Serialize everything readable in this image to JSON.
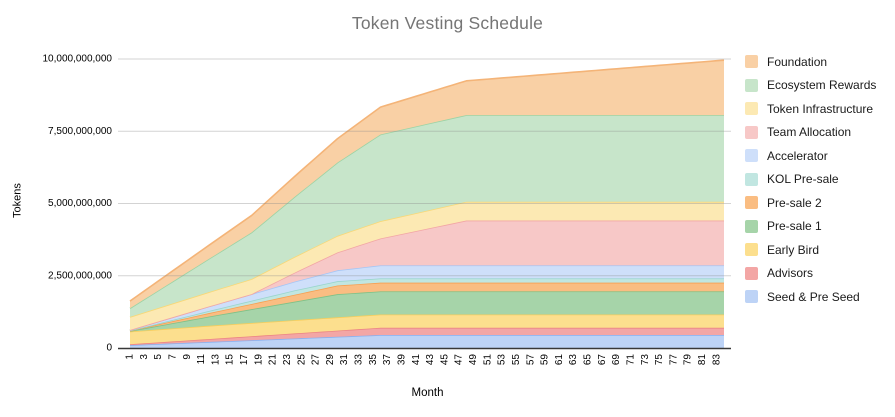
{
  "chart_data": {
    "type": "area",
    "stacked": true,
    "title": "Token Vesting Schedule",
    "xlabel": "Month",
    "ylabel": "Tokens",
    "x_range": [
      1,
      84
    ],
    "x_tick_labels": [
      "1",
      "3",
      "5",
      "7",
      "9",
      "11",
      "13",
      "15",
      "17",
      "19",
      "21",
      "23",
      "25",
      "27",
      "29",
      "31",
      "33",
      "35",
      "37",
      "39",
      "41",
      "43",
      "45",
      "47",
      "49",
      "51",
      "53",
      "55",
      "57",
      "59",
      "61",
      "63",
      "65",
      "67",
      "69",
      "71",
      "73",
      "75",
      "77",
      "79",
      "81",
      "83"
    ],
    "y_ticks": [
      0,
      2500000000,
      5000000000,
      7500000000,
      10000000000
    ],
    "y_tick_labels": [
      "0",
      "2,500,000,000",
      "5,000,000,000",
      "7,500,000,000",
      "10,000,000,000"
    ],
    "ylim": [
      0,
      10000000000
    ],
    "total_supply": 10000000000,
    "legend_position": "right",
    "grid": true,
    "series_order": "bottom_to_top (legend shows reverse order)",
    "series": [
      {
        "name": "Seed & Pre Seed",
        "fill": "#bdd3f6",
        "stroke": "#8ab0ef",
        "breakpoints": [
          [
            1,
            100000000
          ],
          [
            36,
            450000000
          ],
          [
            84,
            450000000
          ]
        ]
      },
      {
        "name": "Advisors",
        "fill": "#f3a6a5",
        "stroke": "#ec8585",
        "breakpoints": [
          [
            1,
            30000000
          ],
          [
            36,
            250000000
          ],
          [
            84,
            250000000
          ]
        ]
      },
      {
        "name": "Early Bird",
        "fill": "#fcdf8e",
        "stroke": "#f8cd5a",
        "breakpoints": [
          [
            1,
            440000000
          ],
          [
            12,
            460000000
          ],
          [
            84,
            460000000
          ]
        ]
      },
      {
        "name": "Pre-sale 1",
        "fill": "#a6d4a9",
        "stroke": "#7fc187",
        "breakpoints": [
          [
            1,
            20000000
          ],
          [
            30,
            800000000
          ],
          [
            84,
            800000000
          ]
        ]
      },
      {
        "name": "Pre-sale 2",
        "fill": "#fabd82",
        "stroke": "#f6a052",
        "breakpoints": [
          [
            1,
            10000000
          ],
          [
            30,
            300000000
          ],
          [
            84,
            300000000
          ]
        ]
      },
      {
        "name": "KOL Pre-sale",
        "fill": "#c1e6e1",
        "stroke": "#99d5cd",
        "breakpoints": [
          [
            1,
            5000000
          ],
          [
            24,
            150000000
          ],
          [
            84,
            150000000
          ]
        ]
      },
      {
        "name": "Accelerator",
        "fill": "#cedffa",
        "stroke": "#a5c6f5",
        "breakpoints": [
          [
            1,
            20000000
          ],
          [
            36,
            450000000
          ],
          [
            84,
            450000000
          ]
        ]
      },
      {
        "name": "Team Allocation",
        "fill": "#f7c8c7",
        "stroke": "#f2a6a5",
        "breakpoints": [
          [
            1,
            0
          ],
          [
            18,
            0
          ],
          [
            48,
            1550000000
          ],
          [
            84,
            1550000000
          ]
        ]
      },
      {
        "name": "Token Infrastructure",
        "fill": "#fce9b3",
        "stroke": "#f8d877",
        "breakpoints": [
          [
            1,
            450000000
          ],
          [
            48,
            650000000
          ],
          [
            84,
            650000000
          ]
        ]
      },
      {
        "name": "Ecosystem Rewards",
        "fill": "#c7e5ca",
        "stroke": "#9cd3a5",
        "breakpoints": [
          [
            1,
            300000000
          ],
          [
            36,
            3000000000
          ],
          [
            84,
            3000000000
          ]
        ]
      },
      {
        "name": "Foundation",
        "fill": "#f9d0a5",
        "stroke": "#f4b478",
        "breakpoints": [
          [
            1,
            250000000
          ],
          [
            84,
            1900000000
          ]
        ]
      }
    ],
    "colors": {
      "grid_line": "#e2e2e2",
      "axis_line": "#383838",
      "title_text": "#757575",
      "tick_text": "#000000"
    }
  }
}
